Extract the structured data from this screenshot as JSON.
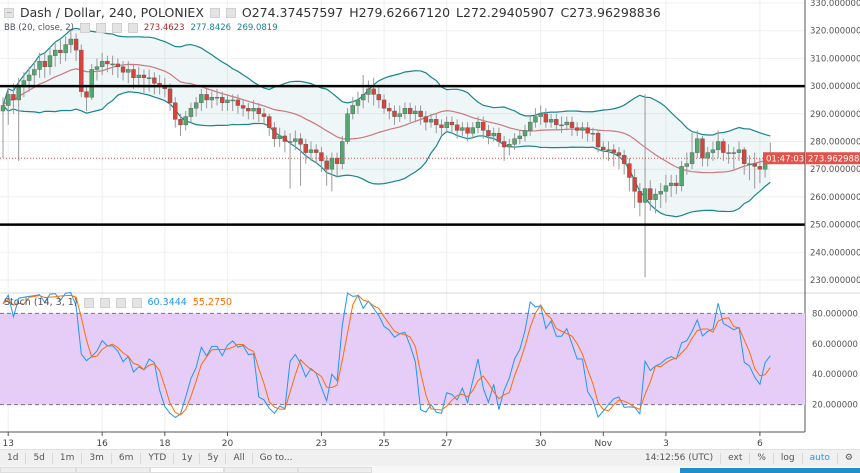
{
  "header": {
    "symbol": "Dash / Dollar, 240, POLONIEX",
    "open": "O274.37457597",
    "high": "H279.62667120",
    "low": "L272.29405907",
    "close": "C273.96298836"
  },
  "bb": {
    "label": "BB (20, close, 2)",
    "basis": "273.4623",
    "upper": "277.8426",
    "lower": "269.0819",
    "basis_color": "#b2242b",
    "band_color": "#17868a"
  },
  "stoch": {
    "label": "Stoch (14, 3, 1)",
    "k": "60.3444",
    "d": "55.2750",
    "k_color": "#2196f3",
    "d_color": "#ff6d00",
    "fill_color": "#e6cdf7"
  },
  "price_axis": {
    "labels": [
      "330.00000000",
      "320.00000000",
      "310.00000000",
      "300.00000000",
      "290.00000000",
      "280.00000000",
      "270.00000000",
      "260.00000000",
      "250.00000000",
      "240.00000000",
      "230.00000000"
    ],
    "current": "273.96298836",
    "countdown": "01:47:03"
  },
  "stoch_axis": {
    "labels": [
      "80.000000",
      "60.000000",
      "40.000000",
      "20.000000"
    ]
  },
  "toolbar": {
    "ranges": [
      "1d",
      "5d",
      "1m",
      "3m",
      "6m",
      "YTD",
      "1y",
      "5y",
      "All",
      "Go to..."
    ],
    "clock": "14:12:56 (UTC)",
    "ext": "ext",
    "percent": "%",
    "log": "log",
    "auto": "auto"
  },
  "chart_data": {
    "type": "candlestick",
    "ylim": [
      227,
      332
    ],
    "stoch_ylim": [
      0,
      100
    ],
    "horizontal_lines": [
      300,
      250
    ],
    "up_color": "#53a76f",
    "down_color": "#d6433a",
    "x_ticks": [
      {
        "label": "13",
        "candle": 1
      },
      {
        "label": "16",
        "candle": 19
      },
      {
        "label": "18",
        "candle": 31
      },
      {
        "label": "20",
        "candle": 43
      },
      {
        "label": "23",
        "candle": 61
      },
      {
        "label": "25",
        "candle": 73
      },
      {
        "label": "27",
        "candle": 85
      },
      {
        "label": "30",
        "candle": 103
      },
      {
        "label": "Nov",
        "candle": 115
      },
      {
        "label": "3",
        "candle": 127
      },
      {
        "label": "6",
        "candle": 145
      }
    ],
    "candles": [
      [
        291,
        296,
        274,
        293
      ],
      [
        293,
        299,
        286,
        297
      ],
      [
        297,
        301,
        290,
        295
      ],
      [
        295,
        303,
        273,
        300
      ],
      [
        300,
        305,
        296,
        302
      ],
      [
        302,
        307,
        298,
        304
      ],
      [
        304,
        309,
        300,
        306
      ],
      [
        306,
        312,
        303,
        309
      ],
      [
        309,
        312,
        303,
        307
      ],
      [
        307,
        314,
        304,
        311
      ],
      [
        311,
        316,
        307,
        313
      ],
      [
        313,
        317,
        308,
        312
      ],
      [
        312,
        318,
        309,
        315
      ],
      [
        315,
        320,
        312,
        317
      ],
      [
        317,
        319,
        309,
        313
      ],
      [
        313,
        315,
        296,
        298
      ],
      [
        298,
        300,
        291,
        296
      ],
      [
        296,
        308,
        295,
        306
      ],
      [
        306,
        310,
        302,
        307
      ],
      [
        307,
        312,
        304,
        309
      ],
      [
        309,
        311,
        305,
        308
      ],
      [
        308,
        311,
        304,
        308
      ],
      [
        308,
        310,
        303,
        307
      ],
      [
        307,
        309,
        302,
        305
      ],
      [
        305,
        309,
        301,
        306
      ],
      [
        306,
        308,
        299,
        303
      ],
      [
        303,
        307,
        300,
        304
      ],
      [
        304,
        306,
        297,
        303
      ],
      [
        303,
        306,
        298,
        303
      ],
      [
        303,
        305,
        297,
        301
      ],
      [
        301,
        304,
        297,
        300
      ],
      [
        300,
        303,
        296,
        299
      ],
      [
        299,
        301,
        291,
        294
      ],
      [
        294,
        296,
        285,
        288
      ],
      [
        288,
        290,
        282,
        286
      ],
      [
        286,
        291,
        284,
        289
      ],
      [
        289,
        294,
        287,
        292
      ],
      [
        292,
        296,
        289,
        294
      ],
      [
        294,
        299,
        291,
        297
      ],
      [
        297,
        299,
        292,
        295
      ],
      [
        295,
        298,
        292,
        296
      ],
      [
        296,
        299,
        293,
        296
      ],
      [
        296,
        298,
        291,
        294
      ],
      [
        294,
        297,
        291,
        295
      ],
      [
        295,
        297,
        291,
        295
      ],
      [
        295,
        297,
        290,
        293
      ],
      [
        293,
        295,
        289,
        292
      ],
      [
        292,
        294,
        288,
        291
      ],
      [
        291,
        295,
        288,
        292
      ],
      [
        292,
        294,
        287,
        290
      ],
      [
        290,
        292,
        286,
        289
      ],
      [
        289,
        290,
        282,
        285
      ],
      [
        285,
        287,
        278,
        281
      ],
      [
        281,
        285,
        278,
        282
      ],
      [
        282,
        284,
        276,
        280
      ],
      [
        280,
        283,
        263,
        280
      ],
      [
        280,
        284,
        277,
        281
      ],
      [
        281,
        283,
        264,
        279
      ],
      [
        279,
        281,
        272,
        276
      ],
      [
        276,
        280,
        273,
        277
      ],
      [
        277,
        279,
        272,
        276
      ],
      [
        276,
        278,
        269,
        273
      ],
      [
        273,
        275,
        264,
        270
      ],
      [
        270,
        276,
        262,
        274
      ],
      [
        274,
        276,
        267,
        272
      ],
      [
        272,
        282,
        270,
        280
      ],
      [
        280,
        292,
        279,
        290
      ],
      [
        290,
        296,
        288,
        293
      ],
      [
        293,
        298,
        290,
        295
      ],
      [
        295,
        304,
        292,
        297
      ],
      [
        297,
        302,
        294,
        299
      ],
      [
        299,
        303,
        293,
        297
      ],
      [
        297,
        300,
        292,
        295
      ],
      [
        295,
        297,
        290,
        292
      ],
      [
        292,
        294,
        288,
        291
      ],
      [
        291,
        293,
        286,
        289
      ],
      [
        289,
        293,
        287,
        290
      ],
      [
        290,
        294,
        288,
        292
      ],
      [
        292,
        294,
        287,
        290
      ],
      [
        290,
        293,
        287,
        291
      ],
      [
        291,
        293,
        286,
        289
      ],
      [
        289,
        291,
        284,
        287
      ],
      [
        287,
        290,
        285,
        288
      ],
      [
        288,
        290,
        283,
        286
      ],
      [
        286,
        288,
        282,
        285
      ],
      [
        285,
        289,
        283,
        287
      ],
      [
        287,
        289,
        283,
        286
      ],
      [
        286,
        288,
        281,
        284
      ],
      [
        284,
        287,
        282,
        285
      ],
      [
        285,
        287,
        280,
        283
      ],
      [
        283,
        287,
        281,
        285
      ],
      [
        285,
        289,
        283,
        287
      ],
      [
        287,
        289,
        281,
        284
      ],
      [
        284,
        286,
        279,
        282
      ],
      [
        282,
        285,
        280,
        283
      ],
      [
        283,
        285,
        278,
        280
      ],
      [
        280,
        282,
        273,
        278
      ],
      [
        278,
        281,
        275,
        279
      ],
      [
        279,
        283,
        277,
        281
      ],
      [
        281,
        284,
        279,
        282
      ],
      [
        282,
        286,
        280,
        284
      ],
      [
        284,
        289,
        282,
        287
      ],
      [
        287,
        292,
        285,
        289
      ],
      [
        289,
        293,
        286,
        290
      ],
      [
        290,
        292,
        285,
        287
      ],
      [
        287,
        290,
        285,
        288
      ],
      [
        288,
        290,
        284,
        286
      ],
      [
        286,
        289,
        283,
        286
      ],
      [
        286,
        289,
        284,
        287
      ],
      [
        287,
        289,
        282,
        285
      ],
      [
        285,
        287,
        282,
        284
      ],
      [
        284,
        287,
        281,
        285
      ],
      [
        285,
        287,
        280,
        283
      ],
      [
        283,
        285,
        280,
        283
      ],
      [
        283,
        284,
        276,
        278
      ],
      [
        278,
        280,
        274,
        277
      ],
      [
        277,
        280,
        273,
        277
      ],
      [
        277,
        279,
        271,
        276
      ],
      [
        276,
        278,
        270,
        275
      ],
      [
        275,
        277,
        268,
        272
      ],
      [
        272,
        274,
        262,
        267
      ],
      [
        267,
        270,
        256,
        262
      ],
      [
        262,
        265,
        253,
        258
      ],
      [
        258,
        297,
        231,
        263
      ],
      [
        263,
        266,
        255,
        259
      ],
      [
        259,
        263,
        254,
        261
      ],
      [
        261,
        265,
        256,
        262
      ],
      [
        262,
        268,
        258,
        264
      ],
      [
        264,
        268,
        260,
        265
      ],
      [
        265,
        268,
        261,
        264
      ],
      [
        264,
        273,
        262,
        271
      ],
      [
        271,
        276,
        268,
        272
      ],
      [
        272,
        283,
        270,
        276
      ],
      [
        276,
        284,
        274,
        281
      ],
      [
        281,
        282,
        271,
        274
      ],
      [
        274,
        278,
        271,
        276
      ],
      [
        276,
        280,
        273,
        277
      ],
      [
        277,
        284,
        274,
        280
      ],
      [
        280,
        281,
        273,
        276
      ],
      [
        276,
        279,
        272,
        276
      ],
      [
        276,
        278,
        270,
        276
      ],
      [
        276,
        280,
        273,
        277
      ],
      [
        277,
        278,
        268,
        272
      ],
      [
        272,
        275,
        266,
        272
      ],
      [
        272,
        276,
        263,
        271
      ],
      [
        271,
        274,
        265,
        270
      ],
      [
        270,
        276,
        267,
        273
      ],
      [
        274.37,
        279.63,
        272.29,
        273.96
      ]
    ]
  }
}
